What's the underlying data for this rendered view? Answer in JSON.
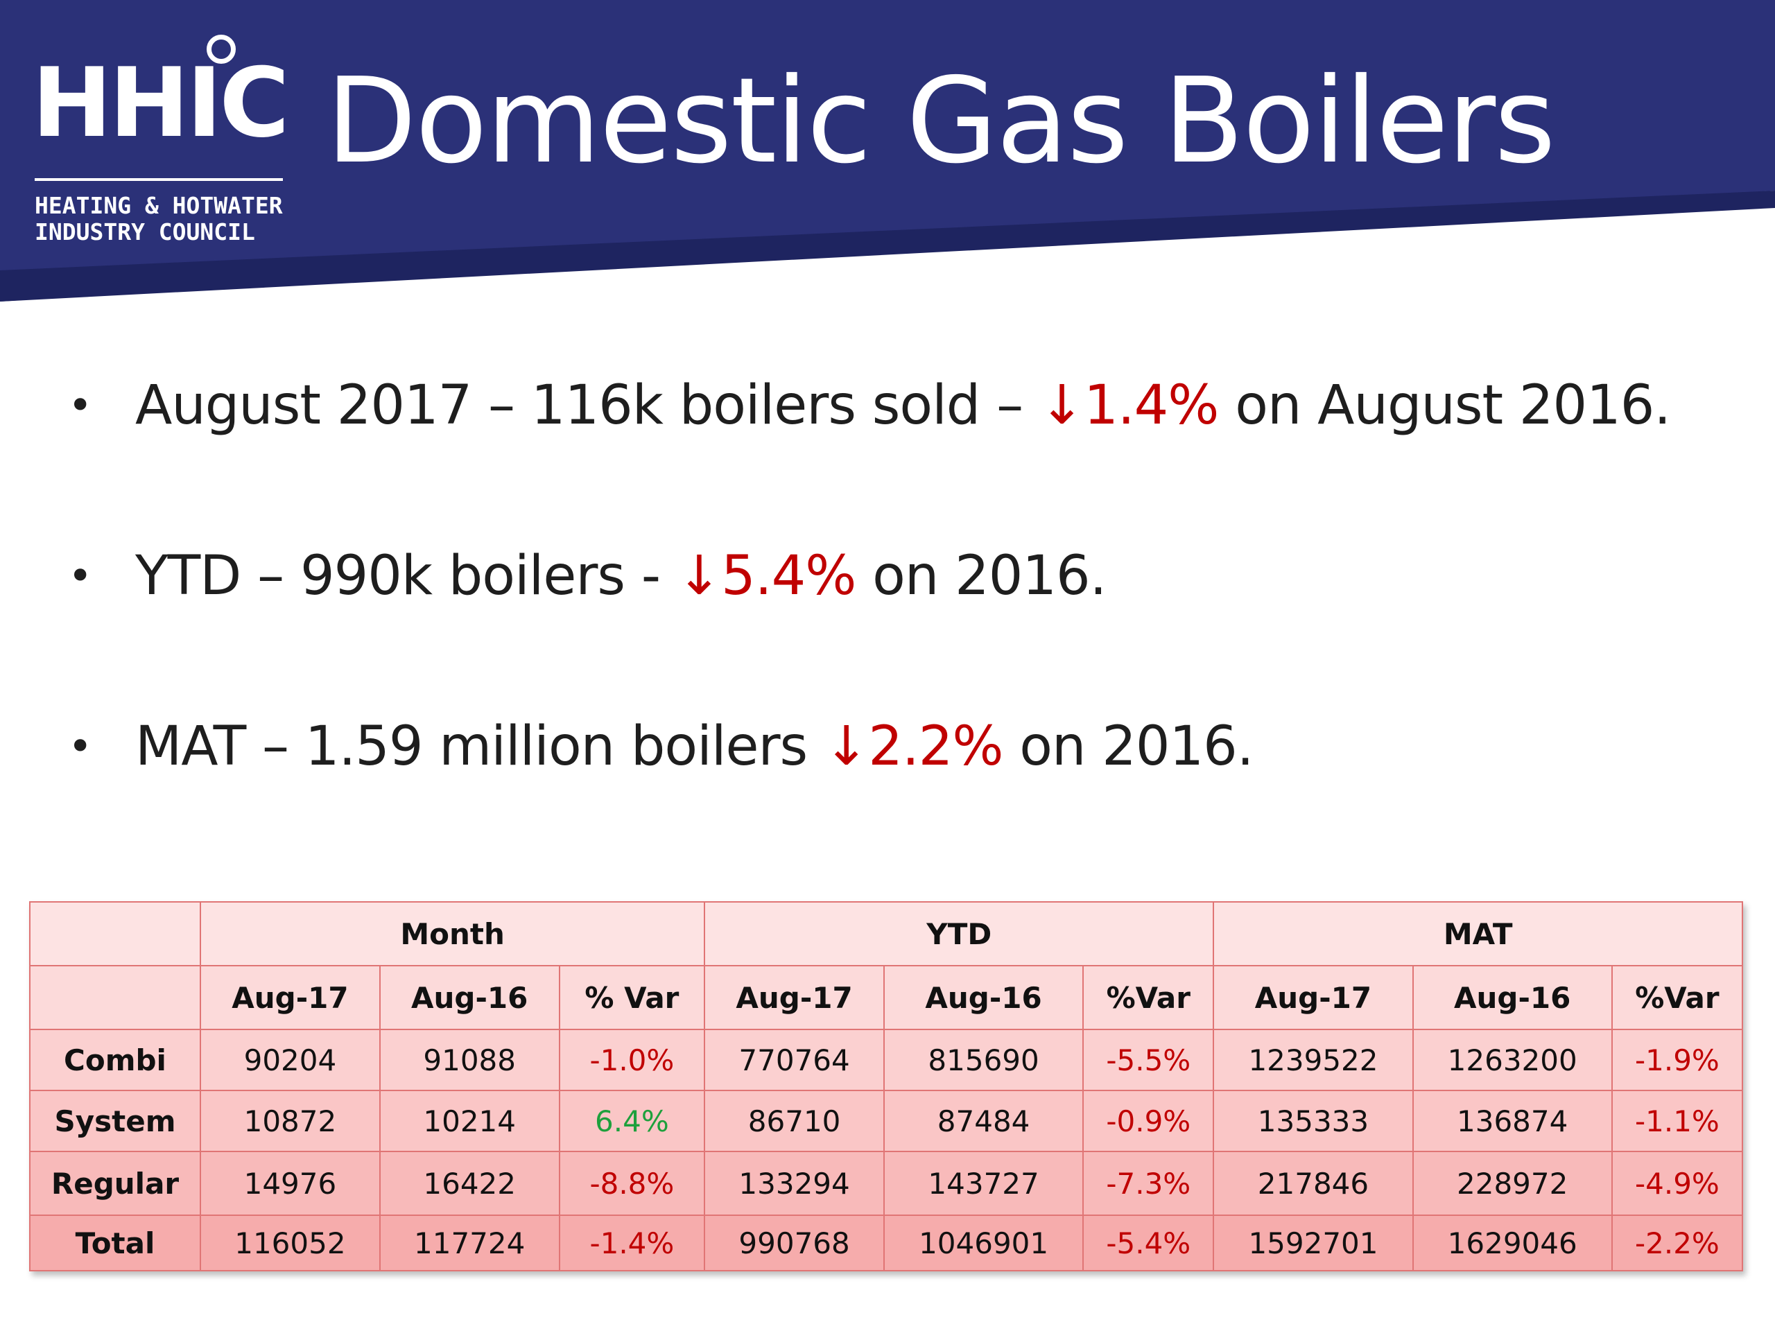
{
  "header": {
    "logo_mark": "HHIC",
    "logo_sub_line1": "HEATING & HOTWATER",
    "logo_sub_line2": "INDUSTRY COUNCIL",
    "title": "Domestic Gas Boilers",
    "band_color": "#2b3178"
  },
  "bullets": [
    {
      "pre": "August 2017 – 116k boilers sold – ",
      "arrow": "↓",
      "value": "1.4%",
      "post": " on August 2016."
    },
    {
      "pre": "YTD – 990k boilers - ",
      "arrow": "↓",
      "value": "5.4%",
      "post": " on 2016."
    },
    {
      "pre": "MAT – 1.59 million boilers ",
      "arrow": "↓",
      "value": "2.2%",
      "post": " on 2016."
    }
  ],
  "table": {
    "groups": [
      "Month",
      "YTD",
      "MAT"
    ],
    "subheaders": [
      "Aug-17",
      "Aug-16",
      "% Var",
      "Aug-17",
      "Aug-16",
      "%Var",
      "Aug-17",
      "Aug-16",
      "%Var"
    ],
    "rows": [
      {
        "label": "Combi",
        "cells": [
          "90204",
          "91088",
          "-1.0%",
          "770764",
          "815690",
          "-5.5%",
          "1239522",
          "1263200",
          "-1.9%"
        ]
      },
      {
        "label": "System",
        "cells": [
          "10872",
          "10214",
          "6.4%",
          "86710",
          "87484",
          "-0.9%",
          "135333",
          "136874",
          "-1.1%"
        ]
      },
      {
        "label": "Regular",
        "cells": [
          "14976",
          "16422",
          "-8.8%",
          "133294",
          "143727",
          "-7.3%",
          "217846",
          "228972",
          "-4.9%"
        ]
      },
      {
        "label": "Total",
        "cells": [
          "116052",
          "117724",
          "-1.4%",
          "990768",
          "1046901",
          "-5.4%",
          "1592701",
          "1629046",
          "-2.2%"
        ]
      }
    ],
    "negative_color": "#c00000",
    "positive_color": "#1ea03c"
  }
}
